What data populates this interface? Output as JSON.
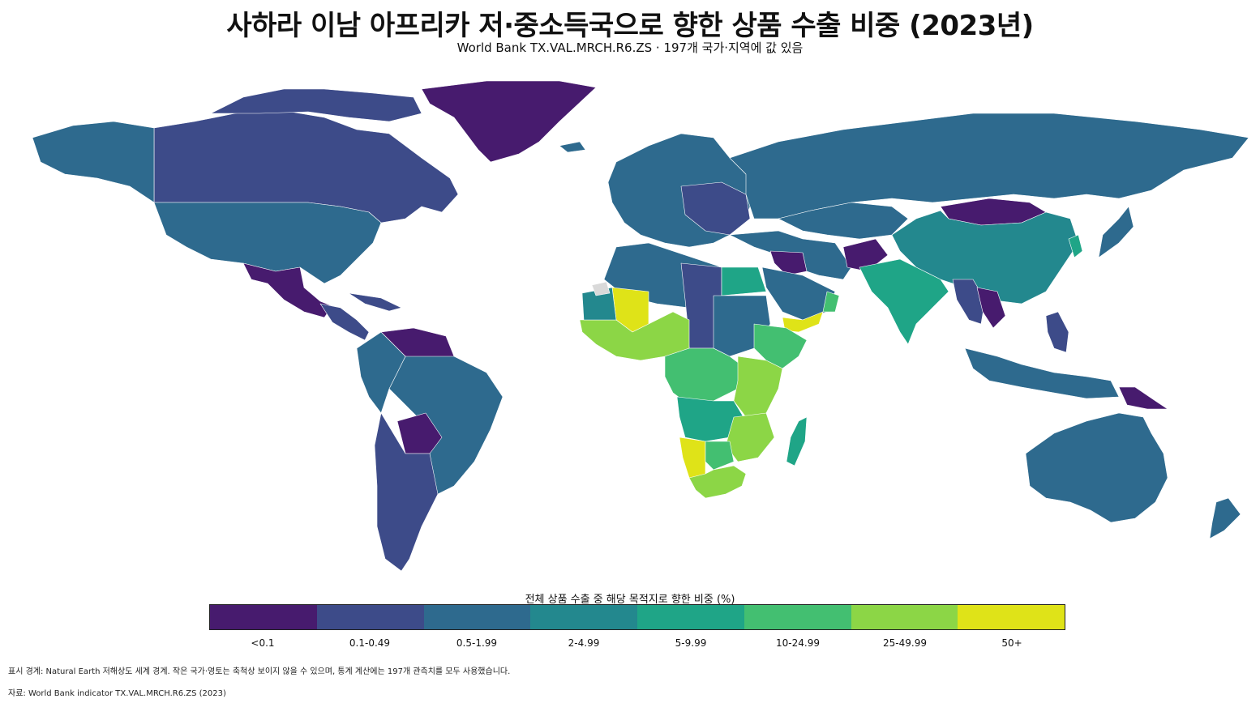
{
  "title": "사하라 이남 아프리카 저·중소득국으로 향한 상품 수출 비중 (2023년)",
  "subtitle": "World Bank TX.VAL.MRCH.R6.ZS · 197개 국가·지역에 값 있음",
  "legend": {
    "title": "전체 상품 수출 중 해당 목적지로 향한 비중 (%)",
    "bins": [
      {
        "label": "<0.1",
        "color": "#471b6e"
      },
      {
        "label": "0.1-0.49",
        "color": "#3d4b89"
      },
      {
        "label": "0.5-1.99",
        "color": "#2e6a8e"
      },
      {
        "label": "2-4.99",
        "color": "#23888e"
      },
      {
        "label": "5-9.99",
        "color": "#1fa587"
      },
      {
        "label": "10-24.99",
        "color": "#43bf71"
      },
      {
        "label": "25-49.99",
        "color": "#8cd646"
      },
      {
        "label": "50+",
        "color": "#dfe318"
      }
    ],
    "no_data_color": "#d9d9d9"
  },
  "footnote_boundaries": "표시 경계: Natural Earth 저해상도 세계 경계. 작은 국가·영토는 축척상 보이지 않을 수 있으며, 통계 계산에는 197개 관측치를 모두 사용했습니다.",
  "footnote_source": "자료: World Bank indicator TX.VAL.MRCH.R6.ZS (2023)"
}
